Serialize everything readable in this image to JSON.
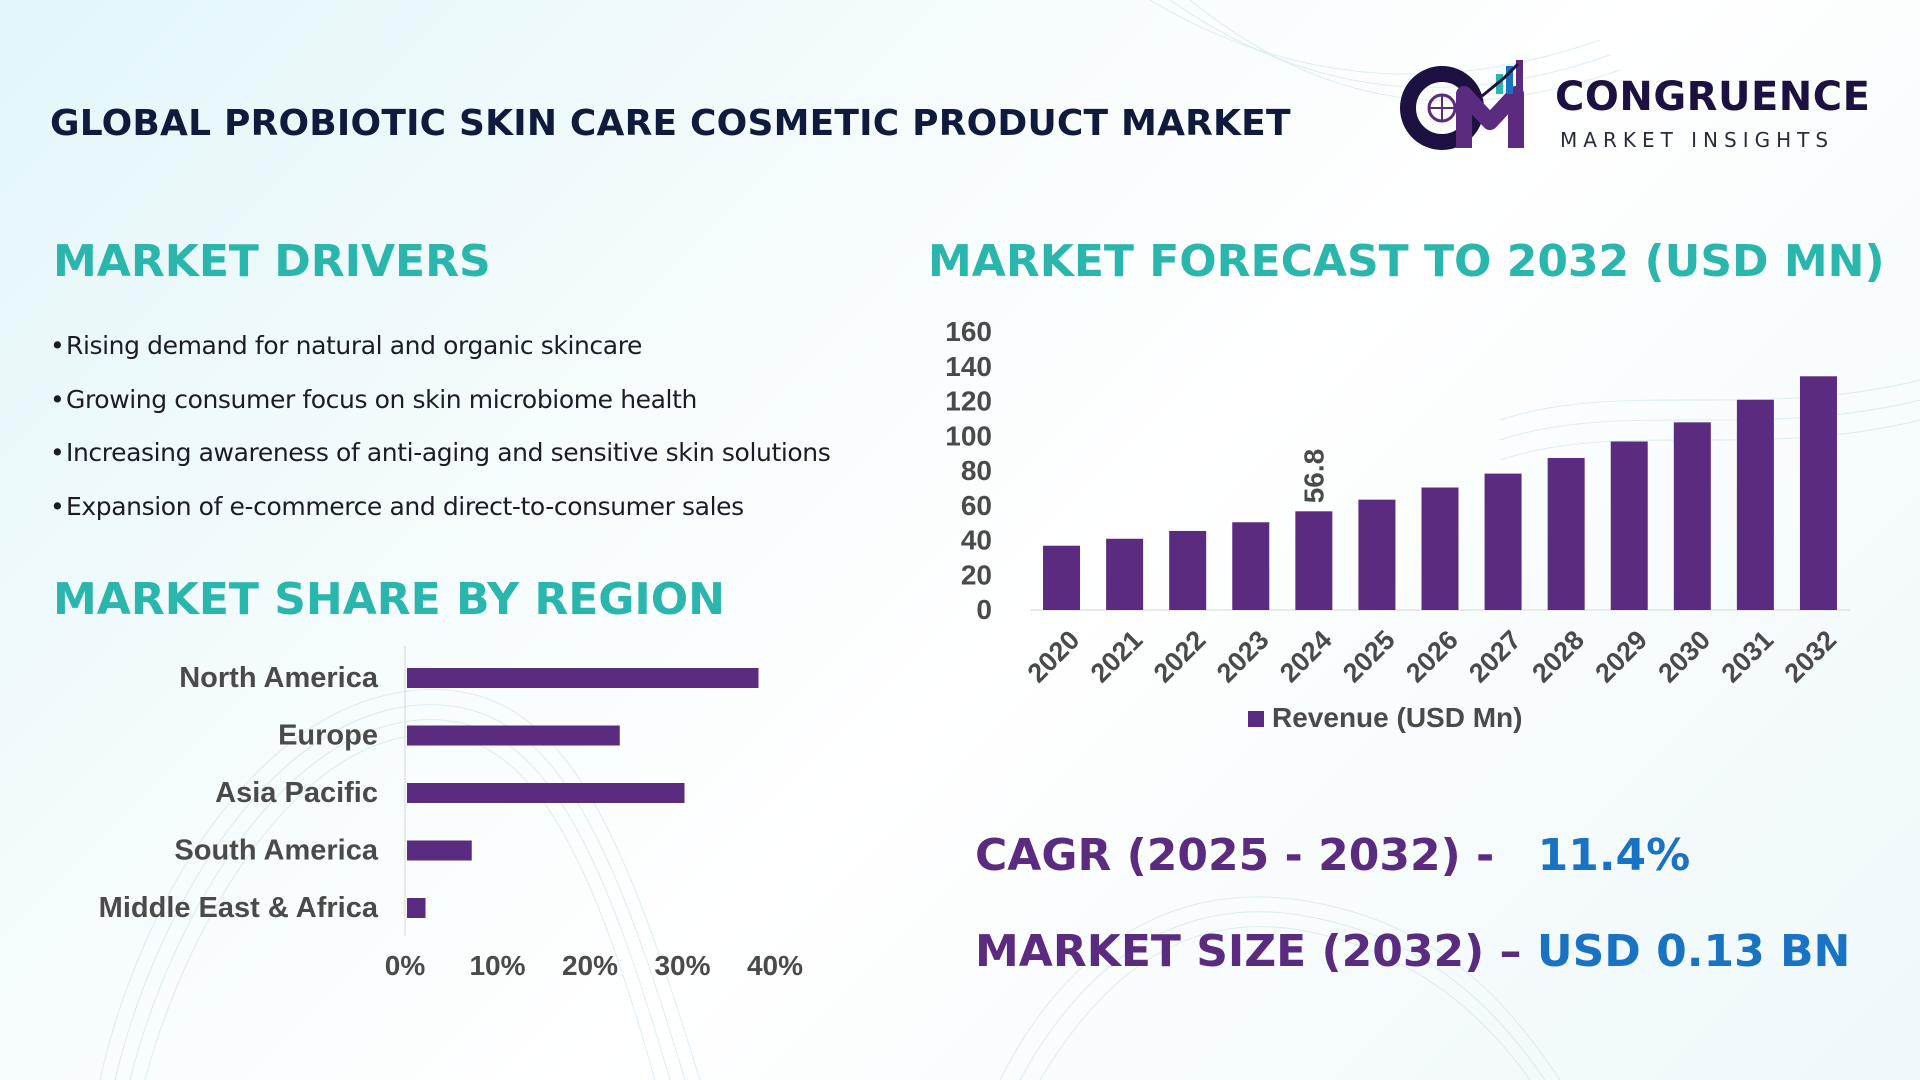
{
  "title": "GLOBAL PROBIOTIC SKIN CARE COSMETIC PRODUCT MARKET",
  "logo": {
    "name": "CONGRUENCE",
    "tagline": "MARKET INSIGHTS"
  },
  "colors": {
    "bar": "#5b2b7f",
    "section_heading": "#2ab5ad",
    "stat_label": "#5b2b7f",
    "stat_value": "#1a73c2",
    "title": "#0f1a3c"
  },
  "drivers": {
    "heading": "MARKET DRIVERS",
    "bullet": "•",
    "items": [
      "Rising demand for natural and organic skincare",
      "Growing consumer focus on skin microbiome health",
      "Increasing awareness of anti-aging and sensitive skin solutions",
      "Expansion of e-commerce and direct-to-consumer sales"
    ]
  },
  "forecast": {
    "heading": "MARKET FORECAST TO 2032 (USD MN)"
  },
  "region": {
    "heading": "MARKET SHARE BY REGION"
  },
  "stats": {
    "cagr_label": "CAGR (2025 - 2032) -",
    "cagr_value": "11.4%",
    "size_label": "MARKET SIZE (2032) –",
    "size_value": "USD 0.13 BN"
  },
  "chart_data": [
    {
      "type": "bar",
      "orientation": "vertical",
      "categories": [
        "2020",
        "2021",
        "2022",
        "2023",
        "2024",
        "2025",
        "2026",
        "2027",
        "2028",
        "2029",
        "2030",
        "2031",
        "2032"
      ],
      "series": [
        {
          "name": "Revenue (USD Mn)",
          "values": [
            37,
            41,
            45.5,
            50.5,
            56.8,
            63.5,
            70.5,
            78.5,
            87.5,
            97,
            108,
            121,
            134.5
          ]
        }
      ],
      "data_labels": [
        {
          "category": "2024",
          "text": "56.8"
        }
      ],
      "ylim": [
        0,
        160
      ],
      "yticks": [
        0,
        20,
        40,
        60,
        80,
        100,
        120,
        140,
        160
      ],
      "legend": "bottom",
      "grid": false
    },
    {
      "type": "bar",
      "orientation": "horizontal",
      "categories": [
        "North America",
        "Europe",
        "Asia Pacific",
        "South America",
        "Middle East & Africa"
      ],
      "values": [
        38,
        23,
        30,
        7,
        2
      ],
      "xlim": [
        0,
        40
      ],
      "xticks": [
        "0%",
        "10%",
        "20%",
        "30%",
        "40%"
      ],
      "grid": false
    }
  ]
}
